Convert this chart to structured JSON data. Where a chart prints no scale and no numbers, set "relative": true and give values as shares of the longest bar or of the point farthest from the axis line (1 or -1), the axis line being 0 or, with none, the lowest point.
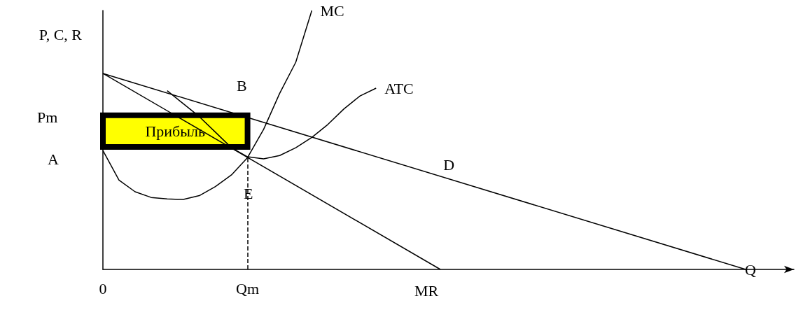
{
  "chart_data": {
    "type": "line",
    "relative": true,
    "xlabel": "Q",
    "ylabel": "P, C, R",
    "categories": [
      "0",
      null,
      null,
      null,
      null,
      null,
      null,
      null,
      null,
      "Qm",
      null,
      null,
      null,
      null,
      null,
      null,
      null,
      null,
      null,
      null,
      null,
      null,
      null,
      null,
      null,
      null,
      null,
      null,
      null,
      null,
      null,
      null,
      null,
      null,
      null,
      null,
      null,
      null,
      null,
      null,
      null,
      null,
      null,
      null
    ],
    "series": [
      {
        "name": "MC",
        "color": "#000000",
        "values": [
          0.459,
          0.345,
          0.3,
          0.278,
          0.272,
          0.27,
          0.285,
          0.32,
          0.365,
          0.432,
          0.541,
          0.68,
          0.8,
          1.0,
          null,
          null,
          null,
          null,
          null,
          null,
          null,
          null,
          null,
          null,
          null,
          null,
          null,
          null,
          null,
          null,
          null,
          null,
          null,
          null,
          null,
          null,
          null,
          null,
          null,
          null,
          null,
          null,
          null,
          null
        ]
      },
      {
        "name": "ATC",
        "color": "#000000",
        "values": [
          null,
          null,
          null,
          null,
          0.69,
          0.64,
          0.59,
          0.53,
          0.47,
          0.435,
          0.427,
          0.44,
          0.47,
          0.51,
          0.56,
          0.62,
          0.67,
          0.7,
          null,
          null,
          null,
          null,
          null,
          null,
          null,
          null,
          null,
          null,
          null,
          null,
          null,
          null,
          null,
          null,
          null,
          null,
          null,
          null,
          null,
          null,
          null,
          null,
          null,
          null
        ]
      },
      {
        "name": "D",
        "color": "#000000",
        "values": [
          0.757,
          null,
          null,
          null,
          null,
          null,
          null,
          null,
          null,
          null,
          null,
          null,
          null,
          null,
          null,
          null,
          null,
          null,
          null,
          null,
          null,
          null,
          null,
          null,
          null,
          null,
          null,
          null,
          null,
          null,
          null,
          null,
          null,
          null,
          null,
          null,
          null,
          null,
          null,
          null,
          0,
          null,
          null,
          null
        ]
      },
      {
        "name": "MR",
        "color": "#000000",
        "values": [
          0.757,
          null,
          null,
          null,
          null,
          null,
          null,
          null,
          null,
          null,
          null,
          null,
          null,
          null,
          null,
          null,
          null,
          null,
          null,
          null,
          null,
          0,
          null,
          null,
          null,
          null,
          null,
          null,
          null,
          null,
          null,
          null,
          null,
          null,
          null,
          null,
          null,
          null,
          null,
          null,
          null,
          null,
          null,
          null
        ]
      }
    ],
    "ref_lines": [
      {
        "axis": "x",
        "value": "Qm",
        "line_style": "dashed"
      }
    ],
    "bands": [
      {
        "axis": "y",
        "from": 0.473,
        "to": 0.595,
        "label": "Прибыль",
        "color": "#ffff00"
      }
    ],
    "annotations": [
      "Pm",
      "A",
      "B",
      "E"
    ]
  }
}
